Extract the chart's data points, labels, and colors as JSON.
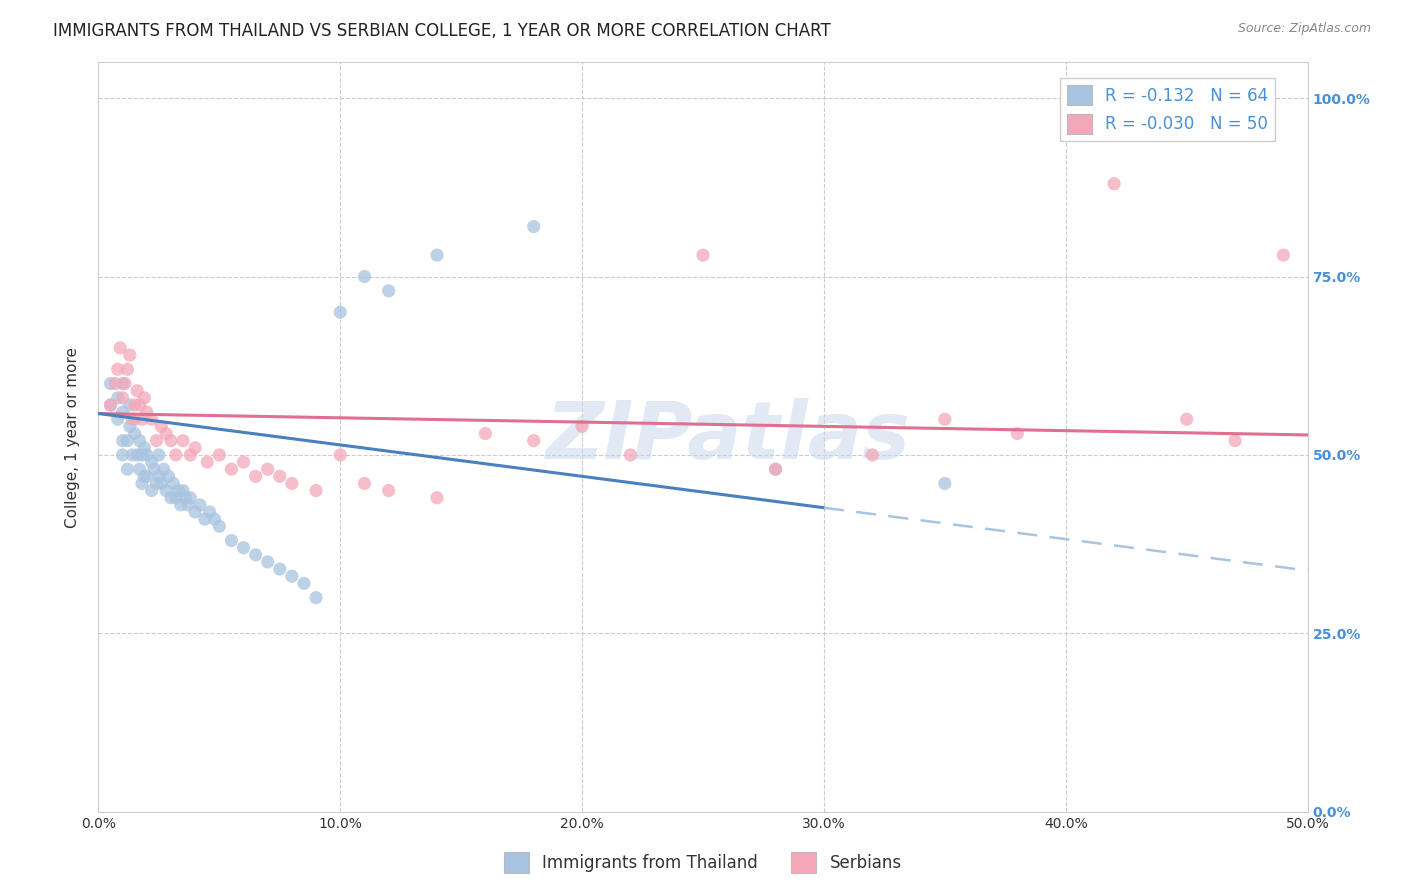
{
  "title": "IMMIGRANTS FROM THAILAND VS SERBIAN COLLEGE, 1 YEAR OR MORE CORRELATION CHART",
  "source": "Source: ZipAtlas.com",
  "xlim": [
    0.0,
    0.5
  ],
  "ylim": [
    0.0,
    1.05
  ],
  "ylabel": "College, 1 year or more",
  "legend_entries": [
    "Immigrants from Thailand",
    "Serbians"
  ],
  "R_thailand": -0.132,
  "N_thailand": 64,
  "R_serbian": -0.03,
  "N_serbian": 50,
  "color_thailand": "#a8c4e0",
  "color_serbian": "#f4a7b9",
  "trendline_thailand_color": "#4a7fc0",
  "trendline_serbian_color": "#e07090",
  "trendline_dashed_color": "#a8c4e0",
  "background_color": "#ffffff",
  "grid_color": "#dddddd",
  "watermark": "ZIPatlas",
  "title_fontsize": 12,
  "axis_label_fontsize": 11,
  "tick_fontsize": 10,
  "legend_fontsize": 12,
  "thailand_x": [
    0.005,
    0.005,
    0.008,
    0.008,
    0.01,
    0.01,
    0.01,
    0.01,
    0.012,
    0.012,
    0.013,
    0.013,
    0.014,
    0.015,
    0.015,
    0.016,
    0.017,
    0.017,
    0.018,
    0.018,
    0.019,
    0.019,
    0.02,
    0.02,
    0.022,
    0.022,
    0.023,
    0.024,
    0.025,
    0.025,
    0.026,
    0.027,
    0.028,
    0.029,
    0.03,
    0.031,
    0.032,
    0.033,
    0.034,
    0.035,
    0.036,
    0.037,
    0.038,
    0.04,
    0.042,
    0.044,
    0.046,
    0.048,
    0.05,
    0.055,
    0.06,
    0.065,
    0.07,
    0.075,
    0.08,
    0.085,
    0.09,
    0.1,
    0.11,
    0.12,
    0.14,
    0.18,
    0.28,
    0.35
  ],
  "thailand_y": [
    0.57,
    0.6,
    0.55,
    0.58,
    0.5,
    0.52,
    0.56,
    0.6,
    0.48,
    0.52,
    0.54,
    0.57,
    0.5,
    0.53,
    0.55,
    0.5,
    0.48,
    0.52,
    0.46,
    0.5,
    0.47,
    0.51,
    0.47,
    0.5,
    0.45,
    0.49,
    0.48,
    0.46,
    0.47,
    0.5,
    0.46,
    0.48,
    0.45,
    0.47,
    0.44,
    0.46,
    0.44,
    0.45,
    0.43,
    0.45,
    0.44,
    0.43,
    0.44,
    0.42,
    0.43,
    0.41,
    0.42,
    0.41,
    0.4,
    0.38,
    0.37,
    0.36,
    0.35,
    0.34,
    0.33,
    0.32,
    0.3,
    0.7,
    0.75,
    0.73,
    0.78,
    0.82,
    0.48,
    0.46
  ],
  "serbian_x": [
    0.005,
    0.007,
    0.008,
    0.009,
    0.01,
    0.011,
    0.012,
    0.013,
    0.014,
    0.015,
    0.016,
    0.017,
    0.018,
    0.019,
    0.02,
    0.022,
    0.024,
    0.026,
    0.028,
    0.03,
    0.032,
    0.035,
    0.038,
    0.04,
    0.045,
    0.05,
    0.055,
    0.06,
    0.065,
    0.07,
    0.075,
    0.08,
    0.09,
    0.1,
    0.11,
    0.12,
    0.14,
    0.16,
    0.18,
    0.2,
    0.22,
    0.25,
    0.28,
    0.32,
    0.35,
    0.38,
    0.42,
    0.45,
    0.47,
    0.49
  ],
  "serbian_y": [
    0.57,
    0.6,
    0.62,
    0.65,
    0.58,
    0.6,
    0.62,
    0.64,
    0.55,
    0.57,
    0.59,
    0.57,
    0.55,
    0.58,
    0.56,
    0.55,
    0.52,
    0.54,
    0.53,
    0.52,
    0.5,
    0.52,
    0.5,
    0.51,
    0.49,
    0.5,
    0.48,
    0.49,
    0.47,
    0.48,
    0.47,
    0.46,
    0.45,
    0.5,
    0.46,
    0.45,
    0.44,
    0.53,
    0.52,
    0.54,
    0.5,
    0.78,
    0.48,
    0.5,
    0.55,
    0.53,
    0.88,
    0.55,
    0.52,
    0.78
  ],
  "trendline_th_x0": 0.0,
  "trendline_th_y0": 0.558,
  "trendline_th_x1": 0.5,
  "trendline_th_y1": 0.338,
  "trendline_th_solid_end": 0.3,
  "trendline_sr_x0": 0.0,
  "trendline_sr_y0": 0.558,
  "trendline_sr_x1": 0.5,
  "trendline_sr_y1": 0.528
}
